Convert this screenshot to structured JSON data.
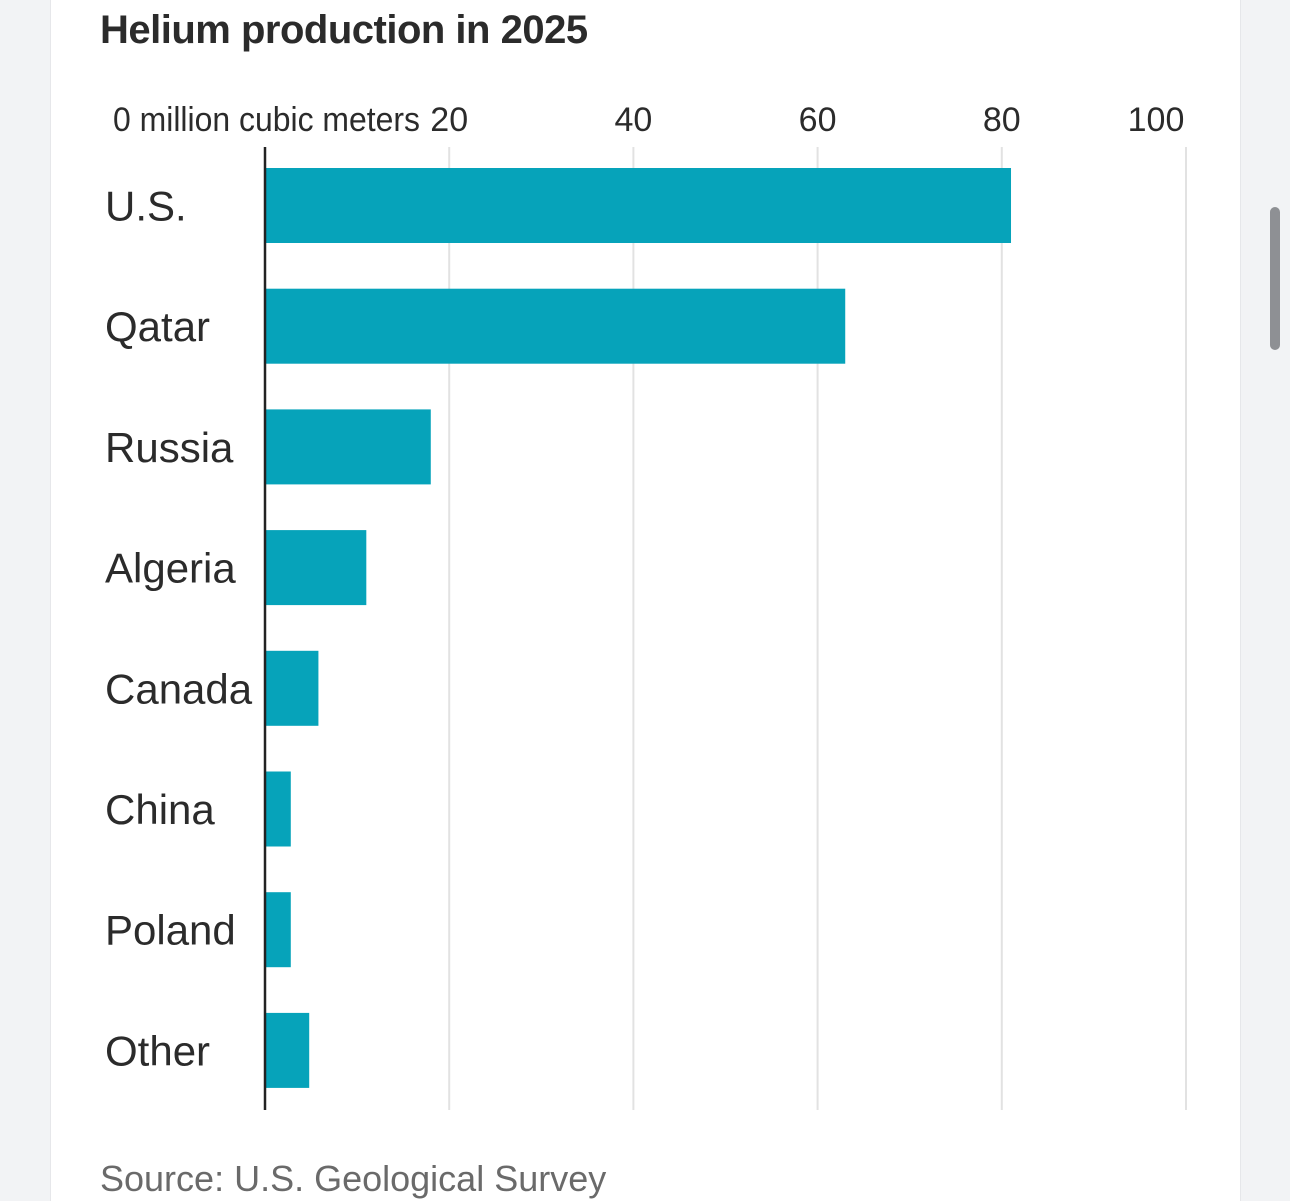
{
  "chart_data": {
    "type": "bar",
    "orientation": "horizontal",
    "title": "Helium production in 2025",
    "unit_label": "million cubic meters",
    "categories": [
      "U.S.",
      "Qatar",
      "Russia",
      "Algeria",
      "Canada",
      "China",
      "Poland",
      "Other"
    ],
    "values": [
      81,
      63,
      18,
      11,
      5.8,
      2.8,
      2.8,
      4.8
    ],
    "xlim": [
      0,
      100
    ],
    "xticks": [
      0,
      20,
      40,
      60,
      80,
      100
    ],
    "xtick_labels": [
      "0 million cubic meters",
      "20",
      "40",
      "60",
      "80",
      "100"
    ],
    "xlabel": "",
    "ylabel": "",
    "grid": true,
    "bar_color": "#06a3ba",
    "source": "Source: U.S. Geological Survey"
  },
  "colors": {
    "bar": "#06a3ba",
    "grid": "#e2e2e2",
    "axis": "#222222",
    "text": "#2b2b2b",
    "muted": "#6a6a6a"
  }
}
